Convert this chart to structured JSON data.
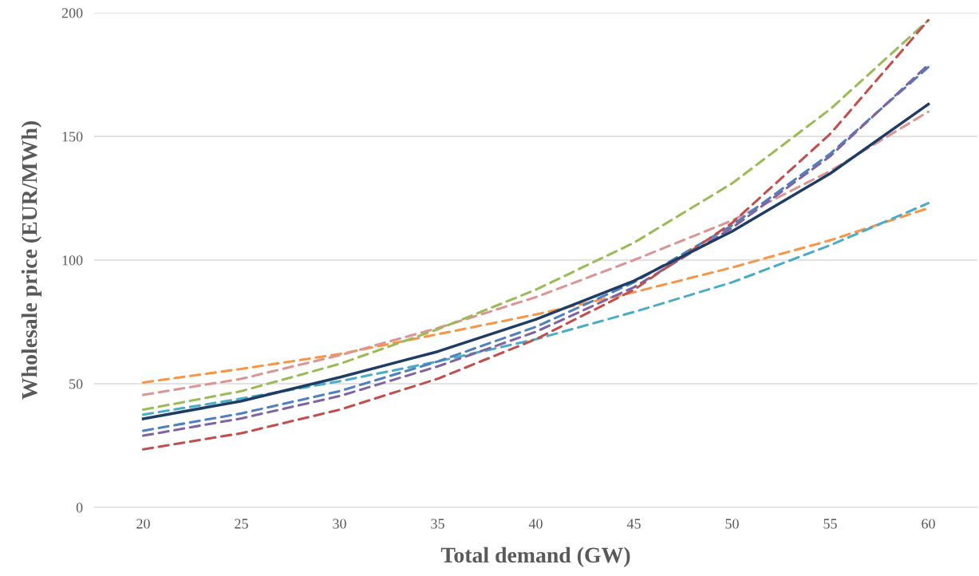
{
  "chart_data": {
    "type": "line",
    "xlabel": "Total demand (GW)",
    "ylabel": "Wholesale price (EUR/MWh)",
    "categories": [
      "20",
      "25",
      "30",
      "35",
      "40",
      "45",
      "50",
      "55",
      "60"
    ],
    "ylim": [
      0,
      200
    ],
    "yticks": [
      0,
      50,
      100,
      150,
      200
    ],
    "grid": "y",
    "marker": "none",
    "series": [
      {
        "color": "#f79646",
        "line_style": "dashed",
        "values": [
          50.5,
          56,
          62,
          70,
          78,
          87,
          97,
          108,
          121
        ]
      },
      {
        "color": "#d99694",
        "line_style": "dashed",
        "values": [
          45.5,
          52,
          61.5,
          72.5,
          85,
          100,
          116,
          136,
          160
        ]
      },
      {
        "color": "#9bbb59",
        "line_style": "dashed",
        "values": [
          39.5,
          47,
          58,
          72,
          88,
          107,
          131,
          161,
          197
        ]
      },
      {
        "color": "#4bacc6",
        "line_style": "dashed",
        "values": [
          37.5,
          44,
          51,
          59,
          68,
          79,
          91,
          106,
          123
        ]
      },
      {
        "color": "#4f81bd",
        "line_style": "dashed",
        "values": [
          31,
          38,
          47,
          59,
          73,
          91,
          114,
          143,
          178
        ]
      },
      {
        "color": "#8064a2",
        "line_style": "dashed",
        "values": [
          29,
          36,
          45,
          57,
          71,
          89,
          113,
          142,
          179
        ]
      },
      {
        "color": "#c0504d",
        "line_style": "dashed",
        "values": [
          23.5,
          30,
          39.5,
          52,
          68,
          88,
          115,
          151,
          197
        ]
      },
      {
        "color": "#1f3c64",
        "line_style": "solid",
        "values": [
          35.8,
          43,
          52.6,
          63,
          76,
          91.6,
          111.6,
          135,
          163
        ]
      }
    ]
  }
}
